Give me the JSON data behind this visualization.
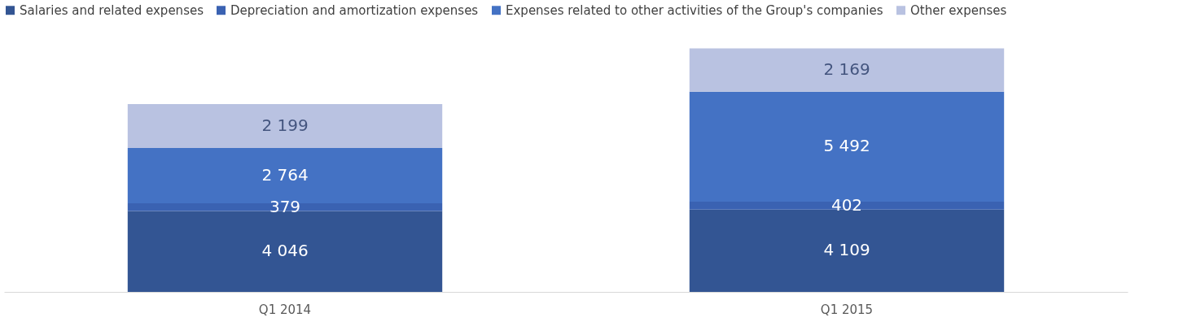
{
  "chart_data": {
    "type": "bar",
    "stacked": true,
    "legend": "top",
    "categories": [
      "Q1 2014",
      "Q1 2015"
    ],
    "series": [
      {
        "name": "Salaries and related expenses",
        "color": "#335593",
        "values": [
          4046,
          4109
        ],
        "value_labels": [
          "4 046",
          "4 109"
        ]
      },
      {
        "name": "Depreciation and amortization expenses",
        "color": "#3a62b2",
        "values": [
          379,
          402
        ],
        "value_labels": [
          "379",
          "402"
        ]
      },
      {
        "name": "Expenses related to other activities of the Group's companies",
        "color": "#4472c4",
        "values": [
          2764,
          5492
        ],
        "value_labels": [
          "2 764",
          "5 492"
        ]
      },
      {
        "name": "Other expenses",
        "color": "#b9c2e1",
        "values": [
          2199,
          2169
        ],
        "value_labels": [
          "2 199",
          "2 169"
        ]
      }
    ]
  }
}
